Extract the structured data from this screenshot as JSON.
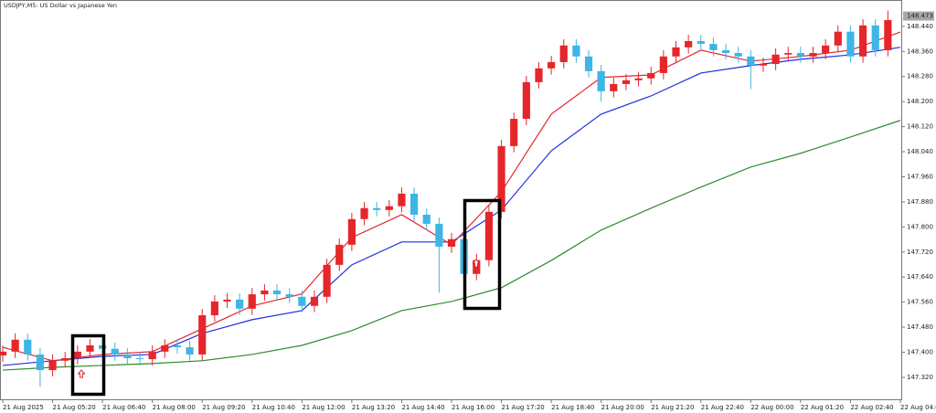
{
  "chart_data": {
    "type": "candlestick",
    "title": "USDJPY,M5:  US Dollar vs Japanese Yen",
    "up_color": "#e5262b",
    "down_color": "#3db5e6",
    "xlim": [
      0,
      1440
    ],
    "ylim": [
      147.247,
      148.495
    ],
    "x": [
      0,
      20,
      40,
      60,
      80,
      100,
      120,
      140,
      160,
      180,
      200,
      220,
      240,
      260,
      280,
      300,
      320,
      340,
      360,
      380,
      400,
      420,
      440,
      460,
      480,
      500,
      520,
      540,
      560,
      580,
      600,
      620,
      640,
      660,
      680,
      700,
      720,
      740,
      760,
      780,
      800,
      820,
      840,
      860,
      880,
      900,
      920,
      940,
      960,
      980,
      1000,
      1020,
      1040,
      1060,
      1080,
      1100,
      1120,
      1140,
      1160,
      1180,
      1200,
      1220,
      1240,
      1260,
      1280,
      1300,
      1320,
      1340,
      1360,
      1380,
      1400,
      1420
    ],
    "open": [
      147.39,
      147.402,
      147.44,
      147.393,
      147.343,
      147.373,
      147.381,
      147.402,
      147.422,
      147.411,
      147.393,
      147.381,
      147.378,
      147.402,
      147.422,
      147.416,
      147.393,
      147.518,
      147.562,
      147.568,
      147.539,
      147.585,
      147.597,
      147.585,
      147.577,
      147.548,
      147.577,
      147.679,
      147.743,
      147.825,
      147.86,
      147.854,
      147.866,
      147.906,
      147.839,
      147.81,
      147.737,
      147.761,
      147.65,
      147.694,
      147.848,
      148.058,
      148.145,
      148.262,
      148.306,
      148.326,
      148.379,
      148.344,
      148.297,
      148.233,
      148.256,
      148.268,
      148.274,
      148.291,
      148.344,
      148.373,
      148.393,
      148.384,
      148.364,
      148.355,
      148.344,
      148.315,
      148.32,
      148.35,
      148.355,
      148.344,
      148.355,
      148.379,
      148.423,
      148.344,
      148.443,
      148.364
    ],
    "high": [
      147.422,
      147.46,
      147.46,
      147.413,
      147.393,
      147.401,
      147.422,
      147.442,
      147.442,
      147.431,
      147.413,
      147.401,
      147.422,
      147.442,
      147.442,
      147.436,
      147.538,
      147.582,
      147.588,
      147.588,
      147.605,
      147.617,
      147.617,
      147.605,
      147.597,
      147.597,
      147.699,
      147.763,
      147.845,
      147.88,
      147.88,
      147.886,
      147.926,
      147.926,
      147.859,
      147.83,
      147.781,
      147.781,
      147.714,
      147.868,
      148.078,
      148.165,
      148.282,
      148.326,
      148.346,
      148.399,
      148.399,
      148.364,
      148.317,
      148.276,
      148.288,
      148.294,
      148.311,
      148.364,
      148.393,
      148.413,
      148.413,
      148.404,
      148.384,
      148.375,
      148.364,
      148.34,
      148.37,
      148.375,
      148.375,
      148.375,
      148.399,
      148.443,
      148.443,
      148.463,
      148.463,
      148.49
    ],
    "low": [
      147.37,
      147.382,
      147.373,
      147.29,
      147.323,
      147.353,
      147.361,
      147.382,
      147.391,
      147.373,
      147.361,
      147.358,
      147.358,
      147.382,
      147.396,
      147.373,
      147.373,
      147.498,
      147.542,
      147.519,
      147.519,
      147.565,
      147.565,
      147.557,
      147.528,
      147.528,
      147.557,
      147.659,
      147.723,
      147.805,
      147.834,
      147.834,
      147.846,
      147.819,
      147.79,
      147.59,
      147.717,
      147.58,
      147.63,
      147.674,
      147.828,
      148.038,
      148.125,
      148.242,
      148.286,
      148.306,
      148.324,
      148.277,
      148.2,
      148.213,
      148.236,
      148.248,
      148.254,
      148.271,
      148.324,
      148.353,
      148.364,
      148.344,
      148.335,
      148.324,
      148.24,
      148.295,
      148.3,
      148.33,
      148.324,
      148.324,
      148.335,
      148.359,
      148.324,
      148.324,
      148.344,
      148.344
    ],
    "close": [
      147.402,
      147.44,
      147.393,
      147.343,
      147.373,
      147.381,
      147.402,
      147.422,
      147.411,
      147.393,
      147.381,
      147.378,
      147.402,
      147.422,
      147.416,
      147.393,
      147.518,
      147.562,
      147.568,
      147.539,
      147.585,
      147.597,
      147.585,
      147.577,
      147.548,
      147.577,
      147.679,
      147.743,
      147.825,
      147.86,
      147.854,
      147.866,
      147.906,
      147.839,
      147.81,
      147.737,
      147.761,
      147.65,
      147.694,
      147.848,
      148.058,
      148.145,
      148.262,
      148.306,
      148.326,
      148.379,
      148.344,
      148.297,
      148.233,
      148.256,
      148.268,
      148.274,
      148.291,
      148.344,
      148.373,
      148.393,
      148.384,
      148.364,
      148.355,
      148.344,
      148.315,
      148.32,
      148.35,
      148.355,
      148.344,
      148.355,
      148.379,
      148.423,
      148.344,
      148.443,
      148.364,
      148.46
    ],
    "lines": [
      {
        "color": "#2e8b2e",
        "x": [
          0,
          80,
          160,
          240,
          320,
          400,
          480,
          560,
          640,
          720,
          800,
          880,
          960,
          1040,
          1120,
          1200,
          1280,
          1360,
          1440
        ],
        "values": [
          147.343,
          147.352,
          147.358,
          147.364,
          147.373,
          147.393,
          147.422,
          147.469,
          147.533,
          147.562,
          147.606,
          147.693,
          147.79,
          147.86,
          147.927,
          147.991,
          148.035,
          148.087,
          148.14
        ]
      },
      {
        "color": "#1f2fe0",
        "x": [
          0,
          80,
          160,
          240,
          320,
          400,
          480,
          560,
          640,
          720,
          800,
          880,
          960,
          1040,
          1120,
          1200,
          1280,
          1360,
          1440
        ],
        "values": [
          147.358,
          147.373,
          147.387,
          147.393,
          147.46,
          147.504,
          147.533,
          147.679,
          147.752,
          147.752,
          147.854,
          148.043,
          148.16,
          148.218,
          148.291,
          148.315,
          148.335,
          148.349,
          148.373
        ]
      },
      {
        "color": "#e5262b",
        "x": [
          0,
          80,
          160,
          240,
          320,
          400,
          480,
          560,
          640,
          720,
          800,
          880,
          960,
          1040,
          1120,
          1200,
          1280,
          1360,
          1440
        ],
        "values": [
          147.416,
          147.373,
          147.393,
          147.402,
          147.475,
          147.548,
          147.586,
          147.766,
          147.839,
          147.743,
          147.912,
          148.16,
          148.277,
          148.285,
          148.364,
          148.329,
          148.344,
          148.364,
          148.422
        ]
      }
    ],
    "xticks": [
      {
        "value": 0,
        "label": "21 Aug 2025"
      },
      {
        "value": 80,
        "label": "21 Aug 05:20"
      },
      {
        "value": 160,
        "label": "21 Aug 06:40"
      },
      {
        "value": 240,
        "label": "21 Aug 08:00"
      },
      {
        "value": 320,
        "label": "21 Aug 09:20"
      },
      {
        "value": 400,
        "label": "21 Aug 10:40"
      },
      {
        "value": 480,
        "label": "21 Aug 12:00"
      },
      {
        "value": 560,
        "label": "21 Aug 13:20"
      },
      {
        "value": 640,
        "label": "21 Aug 14:40"
      },
      {
        "value": 720,
        "label": "21 Aug 16:00"
      },
      {
        "value": 800,
        "label": "21 Aug 17:20"
      },
      {
        "value": 880,
        "label": "21 Aug 18:40"
      },
      {
        "value": 960,
        "label": "21 Aug 20:00"
      },
      {
        "value": 1040,
        "label": "21 Aug 21:20"
      },
      {
        "value": 1120,
        "label": "21 Aug 22:40"
      },
      {
        "value": 1200,
        "label": "22 Aug 00:00"
      },
      {
        "value": 1280,
        "label": "22 Aug 01:20"
      },
      {
        "value": 1360,
        "label": "22 Aug 02:40"
      },
      {
        "value": 1440,
        "label": "22 Aug 04:00"
      }
    ],
    "yticks": [
      {
        "value": 147.32,
        "label": "147.320"
      },
      {
        "value": 147.4,
        "label": "147.400"
      },
      {
        "value": 147.48,
        "label": "147.480"
      },
      {
        "value": 147.56,
        "label": "147.560"
      },
      {
        "value": 147.64,
        "label": "147.640"
      },
      {
        "value": 147.72,
        "label": "147.720"
      },
      {
        "value": 147.8,
        "label": "147.800"
      },
      {
        "value": 147.88,
        "label": "147.880"
      },
      {
        "value": 147.96,
        "label": "147.960"
      },
      {
        "value": 148.04,
        "label": "148.040"
      },
      {
        "value": 148.12,
        "label": "148.120"
      },
      {
        "value": 148.2,
        "label": "148.200"
      },
      {
        "value": 148.28,
        "label": "148.280"
      },
      {
        "value": 148.36,
        "label": "148.360"
      },
      {
        "value": 148.44,
        "label": "148.440"
      }
    ],
    "last_price": {
      "value": 148.473,
      "label": "148.473"
    }
  }
}
